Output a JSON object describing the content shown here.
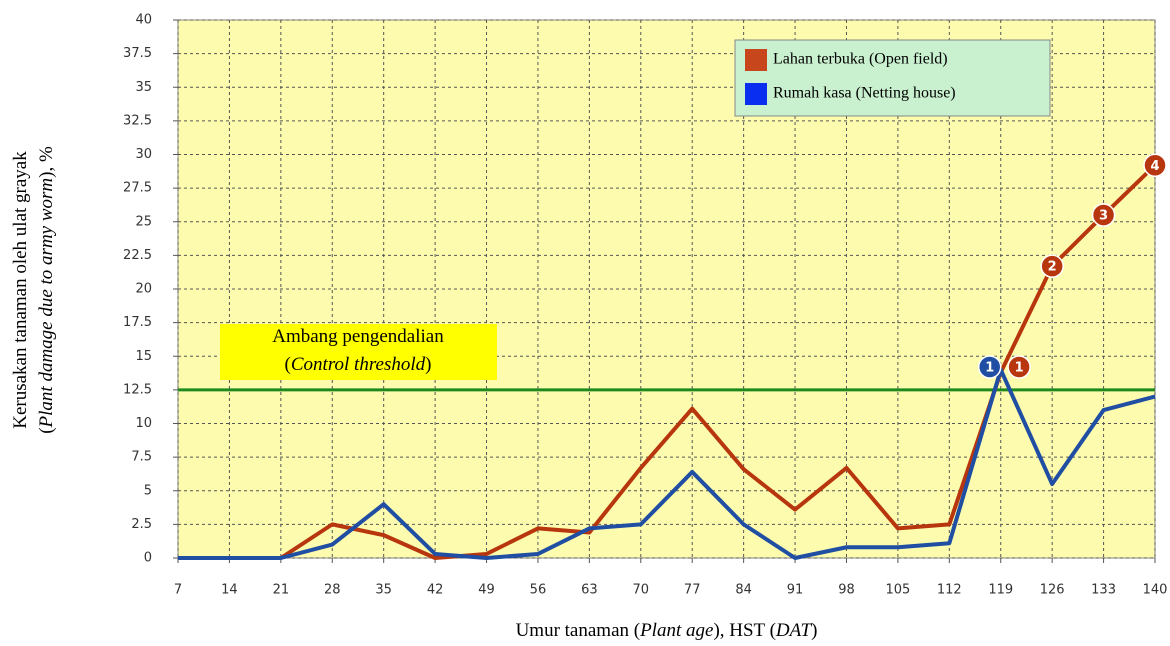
{
  "chart_data": {
    "type": "line",
    "x": [
      7,
      14,
      21,
      28,
      35,
      42,
      49,
      56,
      63,
      70,
      77,
      84,
      91,
      98,
      105,
      112,
      119,
      126,
      133,
      140
    ],
    "xlim": [
      7,
      140
    ],
    "xticks": [
      7,
      14,
      21,
      28,
      35,
      42,
      49,
      56,
      63,
      70,
      77,
      84,
      91,
      98,
      105,
      112,
      119,
      126,
      133,
      140
    ],
    "ylim": [
      0,
      40
    ],
    "yticks": [
      0,
      2.5,
      5,
      7.5,
      10,
      12.5,
      15,
      17.5,
      20,
      22.5,
      25,
      27.5,
      30,
      32.5,
      35,
      37.5,
      40
    ],
    "grid": true,
    "legend": "upper right",
    "series": [
      {
        "name": "Lahan terbuka (Open field)",
        "color": "#b8360e",
        "values": [
          0,
          0,
          0,
          2.5,
          1.7,
          0,
          0.3,
          2.2,
          1.9,
          6.7,
          11.1,
          6.6,
          3.6,
          6.7,
          2.2,
          2.5,
          13.8,
          21.7,
          25.5,
          29.2
        ]
      },
      {
        "name": "Rumah kasa (Netting house)",
        "color": "#1f4ea3",
        "values": [
          0,
          0,
          0,
          1,
          4,
          0.3,
          0,
          0.3,
          2.2,
          2.5,
          6.4,
          2.5,
          0,
          0.8,
          0.8,
          1.1,
          14,
          5.5,
          11,
          12
        ]
      }
    ],
    "threshold": {
      "value": 12.5,
      "color": "#1e8a1e",
      "label": [
        [
          {
            "text": "Ambang pengendalian",
            "italic": false
          }
        ],
        [
          {
            "text": "(",
            "italic": false
          },
          {
            "text": "Control threshold",
            "italic": true
          },
          {
            "text": ")",
            "italic": false
          }
        ]
      ]
    },
    "markers": [
      {
        "series": 1,
        "label": "1",
        "x": 117.5,
        "y": 14.2
      },
      {
        "series": 0,
        "label": "1",
        "x": 121.5,
        "y": 14.2
      },
      {
        "series": 0,
        "label": "2",
        "x": 126,
        "y": 21.7
      },
      {
        "series": 0,
        "label": "3",
        "x": 133,
        "y": 25.5
      },
      {
        "series": 0,
        "label": "4",
        "x": 140,
        "y": 29.2
      }
    ],
    "x_label": [
      {
        "text": "Umur tanaman (",
        "italic": false
      },
      {
        "text": "Plant age",
        "italic": true
      },
      {
        "text": "), HST (",
        "italic": false
      },
      {
        "text": "DAT",
        "italic": true
      },
      {
        "text": ")",
        "italic": false
      }
    ],
    "y_label": [
      [
        {
          "text": "Kerusakan tanaman oleh ulat grayak",
          "italic": false
        }
      ],
      [
        {
          "text": "(",
          "italic": false
        },
        {
          "text": "Plant damage due to army worm",
          "italic": true
        },
        {
          "text": "), %",
          "italic": false
        }
      ]
    ]
  }
}
